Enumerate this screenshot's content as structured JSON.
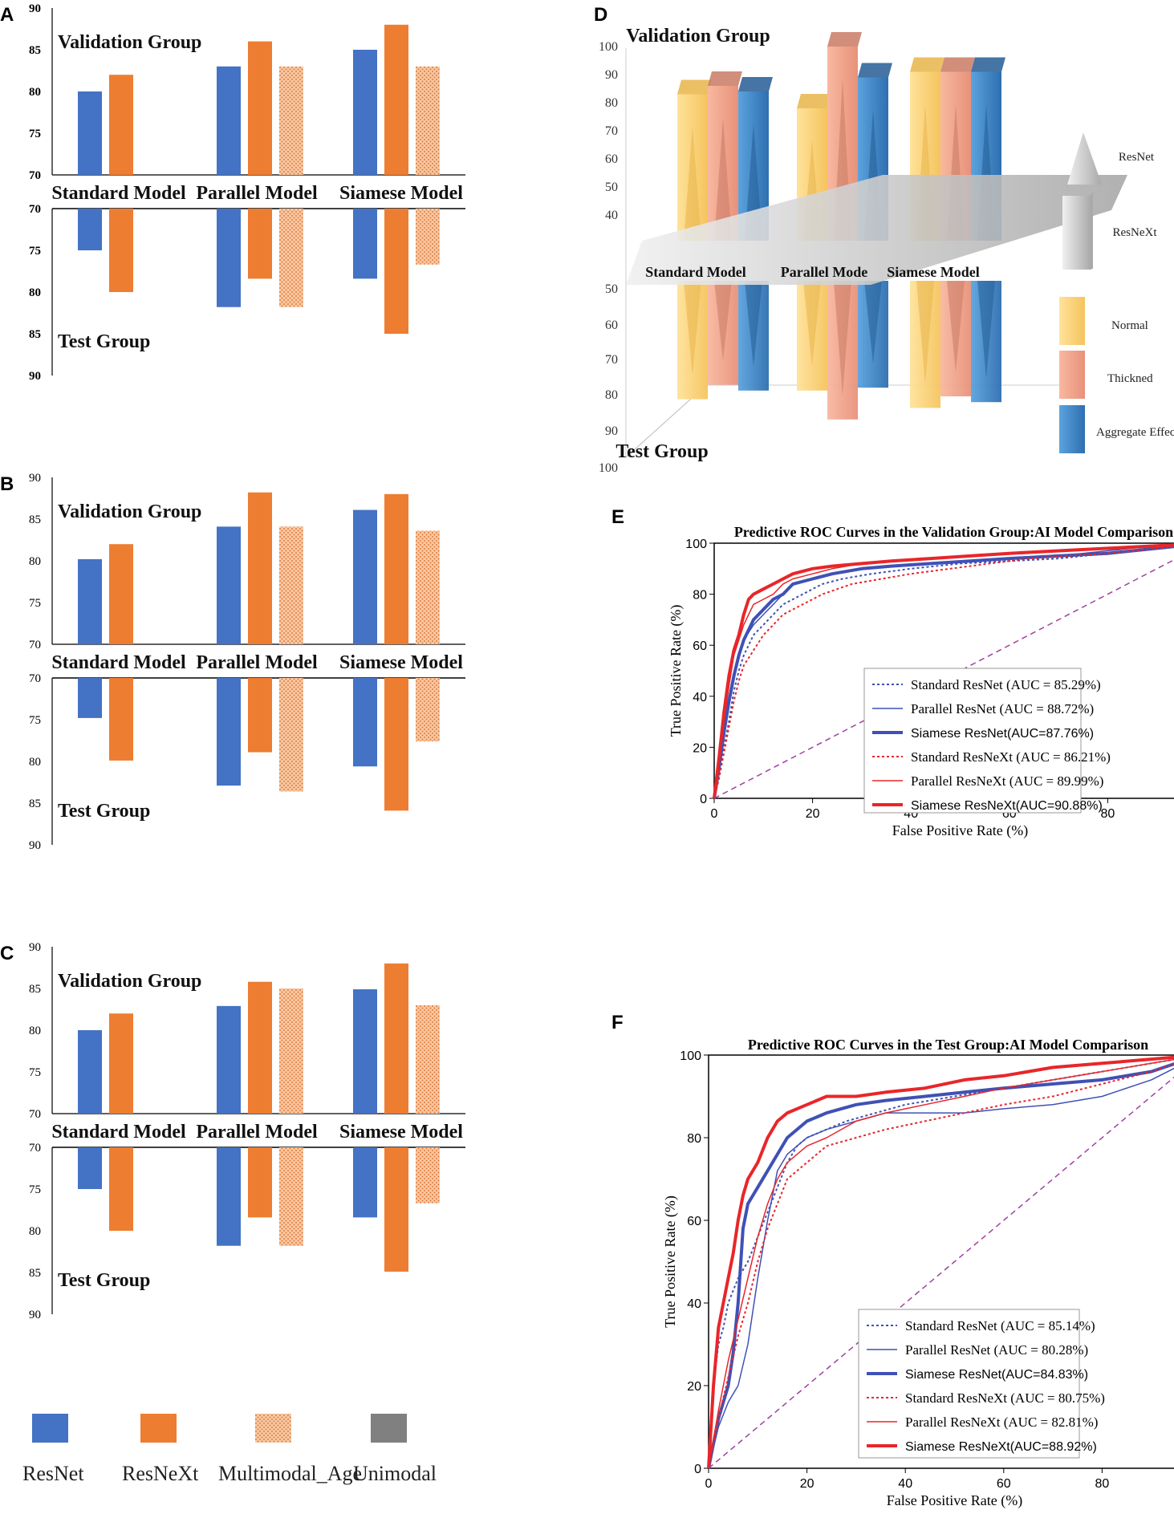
{
  "colors": {
    "resnet": "#4472C4",
    "resnext": "#ED7D31",
    "multimodal": "#F4B183",
    "unimodal": "#7F7F7F",
    "red": "#E8262A",
    "blue": "#3F51B5",
    "diag": "#A040A0"
  },
  "legend": {
    "items": [
      {
        "label": "ResNet",
        "color": "#4472C4",
        "pattern": false
      },
      {
        "label": "ResNeXt",
        "color": "#ED7D31",
        "pattern": false
      },
      {
        "label": "Multimodal_Age",
        "color": "#ED7D31",
        "pattern": true
      },
      {
        "label": "Unimodal",
        "color": "#808080",
        "pattern": false
      }
    ]
  },
  "chart_data": [
    {
      "id": "A",
      "type": "bar",
      "top_label": "Validation Group",
      "bottom_label": "Test Group",
      "categories": [
        "Standard Model",
        "Parallel Model",
        "Siamese Model"
      ],
      "ylim": [
        70,
        90
      ],
      "yticks": [
        "90",
        "85",
        "80",
        "75",
        "70"
      ],
      "bottom_yticks": [
        "70",
        "75",
        "80",
        "85",
        "90"
      ],
      "tick_bold": true,
      "validation": {
        "ResNet": [
          80,
          83,
          85
        ],
        "ResNeXt": [
          82,
          86,
          88
        ],
        "Multimodal_Age": [
          null,
          83,
          83
        ]
      },
      "test": {
        "ResNet": [
          75,
          81.8,
          78.4
        ],
        "ResNeXt": [
          80,
          78.4,
          85
        ],
        "Multimodal_Age": [
          null,
          81.8,
          76.7
        ]
      }
    },
    {
      "id": "B",
      "type": "bar",
      "top_label": "Validation Group",
      "bottom_label": "Test Group",
      "categories": [
        "Standard Model",
        "Parallel Model",
        "Siamese Model"
      ],
      "ylim": [
        70,
        90
      ],
      "yticks": [
        "90",
        "85",
        "80",
        "75",
        "70"
      ],
      "bottom_yticks": [
        "70",
        "75",
        "80",
        "85",
        "90"
      ],
      "tick_bold": false,
      "validation": {
        "ResNet": [
          80.2,
          84.1,
          86.1
        ],
        "ResNeXt": [
          82,
          88.2,
          88
        ],
        "Multimodal_Age": [
          null,
          84.1,
          83.6
        ]
      },
      "test": {
        "ResNet": [
          74.8,
          82.9,
          80.6
        ],
        "ResNeXt": [
          79.9,
          78.9,
          85.9
        ],
        "Multimodal_Age": [
          null,
          83.6,
          77.6
        ]
      }
    },
    {
      "id": "C",
      "type": "bar",
      "top_label": "Validation Group",
      "bottom_label": "Test Group",
      "categories": [
        "Standard Model",
        "Parallel Model",
        "Siamese Model"
      ],
      "ylim": [
        70,
        90
      ],
      "yticks": [
        "90",
        "85",
        "80",
        "75",
        "70"
      ],
      "bottom_yticks": [
        "70",
        "75",
        "80",
        "85",
        "90"
      ],
      "tick_bold": false,
      "validation": {
        "ResNet": [
          80,
          82.9,
          84.9
        ],
        "ResNeXt": [
          82,
          85.8,
          88
        ],
        "Multimodal_Age": [
          null,
          85,
          83
        ]
      },
      "test": {
        "ResNet": [
          75,
          81.8,
          78.4
        ],
        "ResNeXt": [
          80,
          78.4,
          84.9
        ],
        "Multimodal_Age": [
          null,
          81.8,
          76.7
        ]
      }
    },
    {
      "id": "D",
      "type": "bar3d",
      "top_label": "Validation  Group",
      "bottom_label": "Test Group",
      "categories": [
        "Standard Model",
        "Parallel Mode",
        "Siamese Model"
      ],
      "yticks_top": [
        "100",
        "90",
        "80",
        "70",
        "60",
        "50",
        "40"
      ],
      "yticks_bottom": [
        "50",
        "60",
        "70",
        "80",
        "90",
        "100"
      ],
      "legend": [
        "ResNet",
        "ResNeXt",
        "Normal",
        "Thickned",
        "Aggregate Effect"
      ],
      "validation": {
        "Normal": [
          83,
          78,
          91
        ],
        "Thickned": [
          86,
          100,
          91
        ],
        "Aggregate Effect": [
          84,
          89,
          91
        ]
      },
      "test": {
        "Normal": [
          81,
          78,
          84
        ],
        "Thickned": [
          76,
          88,
          80
        ],
        "Aggregate Effect": [
          78,
          77,
          82
        ]
      }
    },
    {
      "id": "E",
      "type": "line",
      "title": "Predictive ROC Curves in the Validation Group:AI Model Comparison",
      "xlabel": "False Positive Rate (%)",
      "ylabel": "True Positive Rate (%)",
      "xlim": [
        0,
        100
      ],
      "ylim": [
        0,
        100
      ],
      "ticks": [
        "0",
        "20",
        "40",
        "60",
        "80",
        "100"
      ],
      "series": [
        {
          "name": "Standard ResNet (AUC = 85.29%)",
          "color": "#3F51B5",
          "style": "dotted",
          "width": 2,
          "x": [
            0,
            1,
            2,
            3,
            4,
            5,
            6,
            7,
            8,
            10,
            12,
            14,
            18,
            22,
            26,
            32,
            40,
            50,
            60,
            70,
            80,
            90,
            100
          ],
          "y": [
            0,
            8,
            20,
            30,
            42,
            50,
            56,
            60,
            64,
            68,
            72,
            76,
            80,
            84,
            86,
            88,
            90,
            92,
            93,
            94,
            96,
            98,
            100
          ]
        },
        {
          "name": "Parallel ResNet (AUC = 88.72%)",
          "color": "#3F51B5",
          "style": "solid",
          "width": 1.5,
          "x": [
            0,
            1,
            2,
            3,
            4,
            5,
            6,
            8,
            10,
            12,
            14,
            16,
            20,
            24,
            30,
            36,
            44,
            52,
            60,
            70,
            80,
            90,
            100
          ],
          "y": [
            0,
            10,
            24,
            36,
            46,
            56,
            62,
            68,
            72,
            76,
            80,
            84,
            86,
            88,
            90,
            91,
            92,
            93,
            94,
            95,
            97,
            99,
            100
          ]
        },
        {
          "name": "Siamese ResNet(AUC=87.76%)",
          "color": "#3F51B5",
          "style": "solid",
          "width": 4,
          "x": [
            0,
            1,
            2,
            3,
            4,
            5,
            6,
            7,
            8,
            10,
            12,
            14,
            16,
            20,
            24,
            30,
            36,
            44,
            52,
            60,
            70,
            80,
            90,
            100
          ],
          "y": [
            0,
            12,
            26,
            38,
            48,
            56,
            62,
            66,
            70,
            74,
            78,
            80,
            84,
            86,
            88,
            90,
            91,
            92,
            93,
            94,
            95,
            96,
            98,
            100
          ]
        },
        {
          "name": "Standard ResNeXt (AUC = 86.21%)",
          "color": "#E8262A",
          "style": "dotted",
          "width": 2,
          "x": [
            0,
            1,
            2,
            3,
            4,
            5,
            6,
            8,
            10,
            12,
            14,
            18,
            22,
            28,
            34,
            40,
            48,
            56,
            64,
            72,
            80,
            90,
            100
          ],
          "y": [
            0,
            8,
            18,
            28,
            38,
            46,
            52,
            58,
            64,
            68,
            72,
            76,
            80,
            84,
            86,
            88,
            90,
            92,
            94,
            95,
            96,
            98,
            100
          ]
        },
        {
          "name": "Parallel ResNeXt (AUC = 89.99%)",
          "color": "#E8262A",
          "style": "solid",
          "width": 1.5,
          "x": [
            0,
            1,
            2,
            3,
            4,
            5,
            6,
            7,
            8,
            10,
            12,
            14,
            16,
            20,
            24,
            30,
            36,
            44,
            52,
            60,
            70,
            80,
            90,
            100
          ],
          "y": [
            0,
            14,
            30,
            44,
            56,
            62,
            68,
            72,
            76,
            78,
            80,
            84,
            86,
            88,
            90,
            92,
            93,
            94,
            95,
            96,
            97,
            98,
            99,
            100
          ]
        },
        {
          "name": "Siamese ResNeXt(AUC=90.88%)",
          "color": "#E8262A",
          "style": "solid",
          "width": 4,
          "x": [
            0,
            1,
            2,
            3,
            4,
            5,
            6,
            7,
            8,
            10,
            12,
            14,
            16,
            20,
            24,
            30,
            36,
            44,
            52,
            60,
            70,
            80,
            90,
            100
          ],
          "y": [
            0,
            16,
            34,
            48,
            58,
            64,
            72,
            78,
            80,
            82,
            84,
            86,
            88,
            90,
            91,
            92,
            93,
            94,
            95,
            96,
            97,
            98,
            99,
            100
          ]
        },
        {
          "name": "diagonal",
          "color": "#A040A0",
          "style": "dashed",
          "width": 1.5,
          "x": [
            0,
            100
          ],
          "y": [
            0,
            100
          ]
        }
      ]
    },
    {
      "id": "F",
      "type": "line",
      "title": "Predictive ROC Curves in the Test Group:AI Model Comparison",
      "xlabel": "False Positive Rate (%)",
      "ylabel": "True Positive Rate (%)",
      "xlim": [
        0,
        100
      ],
      "ylim": [
        0,
        100
      ],
      "ticks": [
        "0",
        "20",
        "40",
        "60",
        "80",
        "100"
      ],
      "series": [
        {
          "name": "Standard ResNet (AUC = 85.14%)",
          "color": "#3F51B5",
          "style": "dotted",
          "width": 2,
          "x": [
            0,
            1,
            2,
            3,
            4,
            6,
            8,
            10,
            12,
            14,
            16,
            18,
            20,
            24,
            28,
            34,
            40,
            50,
            60,
            70,
            80,
            90,
            100
          ],
          "y": [
            0,
            20,
            30,
            34,
            40,
            46,
            50,
            56,
            62,
            68,
            74,
            78,
            80,
            82,
            84,
            86,
            88,
            90,
            92,
            94,
            96,
            98,
            100
          ]
        },
        {
          "name": "Parallel ResNet (AUC = 80.28%)",
          "color": "#3F51B5",
          "style": "solid",
          "width": 1.5,
          "x": [
            0,
            2,
            4,
            6,
            8,
            10,
            12,
            14,
            16,
            20,
            24,
            30,
            36,
            44,
            52,
            60,
            70,
            80,
            90,
            95,
            100
          ],
          "y": [
            0,
            10,
            16,
            20,
            30,
            46,
            60,
            72,
            76,
            80,
            82,
            84,
            86,
            86,
            86,
            87,
            88,
            90,
            94,
            97,
            100
          ]
        },
        {
          "name": "Siamese ResNet(AUC=84.83%)",
          "color": "#3F51B5",
          "style": "solid",
          "width": 4,
          "x": [
            0,
            1,
            2,
            3,
            4,
            5,
            6,
            7,
            8,
            10,
            12,
            14,
            16,
            20,
            24,
            30,
            36,
            44,
            52,
            60,
            70,
            80,
            90,
            100
          ],
          "y": [
            0,
            6,
            12,
            16,
            20,
            28,
            40,
            58,
            64,
            68,
            72,
            76,
            80,
            84,
            86,
            88,
            89,
            90,
            91,
            92,
            93,
            94,
            96,
            100
          ]
        },
        {
          "name": "Standard ResNeXt (AUC = 80.75%)",
          "color": "#E8262A",
          "style": "dotted",
          "width": 2,
          "x": [
            0,
            2,
            4,
            6,
            8,
            10,
            12,
            14,
            16,
            20,
            24,
            30,
            36,
            44,
            52,
            60,
            70,
            80,
            90,
            100
          ],
          "y": [
            0,
            12,
            22,
            32,
            40,
            50,
            58,
            64,
            70,
            74,
            78,
            80,
            82,
            84,
            86,
            88,
            90,
            93,
            96,
            100
          ]
        },
        {
          "name": "Parallel ResNeXt (AUC = 82.81%)",
          "color": "#E8262A",
          "style": "solid",
          "width": 1.5,
          "x": [
            0,
            2,
            4,
            6,
            8,
            10,
            12,
            14,
            16,
            20,
            24,
            30,
            36,
            44,
            52,
            60,
            70,
            80,
            90,
            100
          ],
          "y": [
            0,
            14,
            26,
            36,
            46,
            56,
            64,
            70,
            74,
            78,
            80,
            84,
            86,
            88,
            90,
            92,
            94,
            96,
            98,
            100
          ]
        },
        {
          "name": "Siamese ResNeXt(AUC=88.92%)",
          "color": "#E8262A",
          "style": "solid",
          "width": 4,
          "x": [
            0,
            1,
            2,
            3,
            4,
            5,
            6,
            7,
            8,
            10,
            12,
            14,
            16,
            20,
            24,
            30,
            36,
            44,
            52,
            60,
            70,
            80,
            90,
            100
          ],
          "y": [
            0,
            20,
            34,
            40,
            46,
            52,
            60,
            66,
            70,
            74,
            80,
            84,
            86,
            88,
            90,
            90,
            91,
            92,
            94,
            95,
            97,
            98,
            99,
            100
          ]
        },
        {
          "name": "diagonal",
          "color": "#A040A0",
          "style": "dashed",
          "width": 1.5,
          "x": [
            0,
            100
          ],
          "y": [
            0,
            100
          ]
        }
      ]
    }
  ]
}
